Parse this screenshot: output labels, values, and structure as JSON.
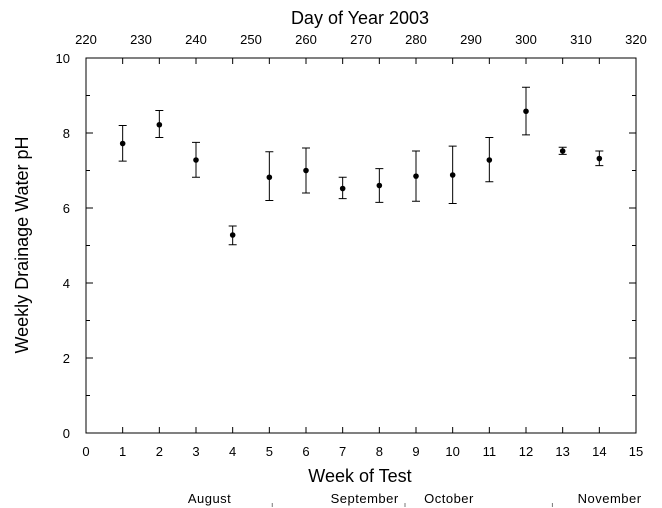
{
  "chart_data": {
    "type": "scatter",
    "title": "",
    "xlabel": "Week of Test",
    "ylabel": "Weekly Drainage Water pH",
    "x2label": "Day of Year 2003",
    "xlim": [
      0,
      15
    ],
    "ylim": [
      0,
      10
    ],
    "x2lim": [
      220,
      320
    ],
    "grid": false,
    "x_ticks": [
      "0",
      "1",
      "2",
      "3",
      "4",
      "5",
      "6",
      "7",
      "8",
      "9",
      "10",
      "11",
      "12",
      "13",
      "14",
      "15"
    ],
    "y_ticks": [
      "0",
      "2",
      "4",
      "6",
      "8",
      "10"
    ],
    "x2_ticks": [
      "220",
      "230",
      "240",
      "250",
      "260",
      "270",
      "280",
      "290",
      "300",
      "310",
      "320"
    ],
    "months": [
      "August",
      "September",
      "October",
      "November"
    ],
    "series": [
      {
        "x": [
          1,
          2,
          3,
          4,
          5,
          6,
          7,
          8,
          9,
          10,
          11,
          12,
          13,
          14
        ],
        "y": [
          7.72,
          8.22,
          7.28,
          5.28,
          6.82,
          7.0,
          6.52,
          6.6,
          6.85,
          6.88,
          7.28,
          8.58,
          7.52,
          7.32
        ],
        "err_low": [
          7.25,
          7.88,
          6.82,
          5.02,
          6.2,
          6.4,
          6.25,
          6.15,
          6.18,
          6.12,
          6.7,
          7.95,
          7.43,
          7.13
        ],
        "err_high": [
          8.2,
          8.6,
          7.75,
          5.52,
          7.5,
          7.6,
          6.82,
          7.05,
          7.52,
          7.65,
          7.88,
          9.22,
          7.62,
          7.52
        ]
      }
    ]
  }
}
